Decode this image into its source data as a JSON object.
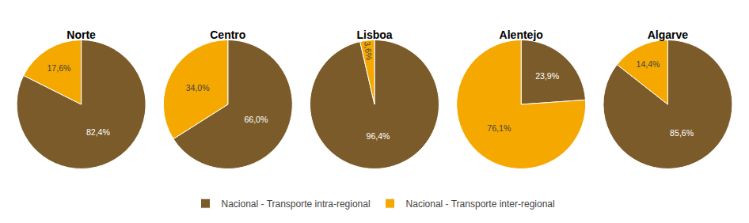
{
  "chart_data": [
    {
      "type": "pie",
      "title": "Norte",
      "categories": [
        "Nacional - Transporte intra-regional",
        "Nacional - Transporte inter-regional"
      ],
      "values": [
        82.4,
        17.6
      ],
      "value_labels": [
        "82,4%",
        "17,6%"
      ],
      "colors": [
        "#7B5B2A",
        "#F5A800"
      ],
      "data_labels": true,
      "legend": "bottom"
    },
    {
      "type": "pie",
      "title": "Centro",
      "categories": [
        "Nacional - Transporte intra-regional",
        "Nacional - Transporte inter-regional"
      ],
      "values": [
        66.0,
        34.0
      ],
      "value_labels": [
        "66,0%",
        "34,0%"
      ],
      "colors": [
        "#7B5B2A",
        "#F5A800"
      ],
      "data_labels": true,
      "legend": "bottom"
    },
    {
      "type": "pie",
      "title": "Lisboa",
      "categories": [
        "Nacional - Transporte intra-regional",
        "Nacional - Transporte inter-regional"
      ],
      "values": [
        96.4,
        3.6
      ],
      "value_labels": [
        "96,4%",
        "3,6%"
      ],
      "colors": [
        "#7B5B2A",
        "#F5A800"
      ],
      "data_labels": true,
      "legend": "bottom"
    },
    {
      "type": "pie",
      "title": "Alentejo",
      "categories": [
        "Nacional - Transporte intra-regional",
        "Nacional - Transporte inter-regional"
      ],
      "values": [
        23.9,
        76.1
      ],
      "value_labels": [
        "23,9%",
        "76,1%"
      ],
      "colors": [
        "#7B5B2A",
        "#F5A800"
      ],
      "data_labels": true,
      "legend": "bottom"
    },
    {
      "type": "pie",
      "title": "Algarve",
      "categories": [
        "Nacional - Transporte intra-regional",
        "Nacional - Transporte inter-regional"
      ],
      "values": [
        85.6,
        14.4
      ],
      "value_labels": [
        "85,6%",
        "14,4%"
      ],
      "colors": [
        "#7B5B2A",
        "#F5A800"
      ],
      "data_labels": true,
      "legend": "bottom"
    }
  ]
}
